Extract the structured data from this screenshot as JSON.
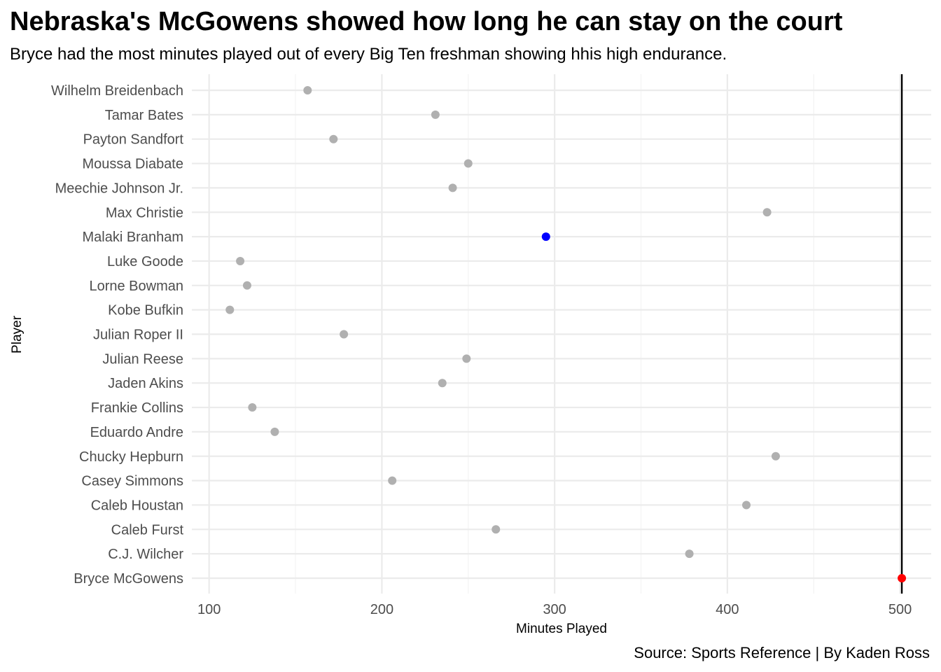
{
  "chart_data": {
    "type": "scatter",
    "title": "Nebraska's McGowens showed how long he can stay on the court",
    "subtitle": "Bryce had the most minutes played out of every Big Ten freshman showing hhis high endurance.",
    "caption": "Source: Sports Reference | By Kaden Ross",
    "xlabel": "Minutes Played",
    "ylabel": "Player",
    "xlim": [
      90,
      518
    ],
    "x_ticks": [
      100,
      200,
      300,
      400,
      500
    ],
    "grid": true,
    "reference_line": {
      "x": 501,
      "color": "#000000"
    },
    "point_color_default": "#b0b0b0",
    "highlights": {
      "Malaki Branham": "#0000ff",
      "Bryce McGowens": "#ff0000"
    },
    "categories": [
      "Wilhelm Breidenbach",
      "Tamar Bates",
      "Payton Sandfort",
      "Moussa Diabate",
      "Meechie Johnson Jr.",
      "Max Christie",
      "Malaki Branham",
      "Luke Goode",
      "Lorne Bowman",
      "Kobe Bufkin",
      "Julian Roper II",
      "Julian Reese",
      "Jaden Akins",
      "Frankie Collins",
      "Eduardo Andre",
      "Chucky Hepburn",
      "Casey Simmons",
      "Caleb Houstan",
      "Caleb Furst",
      "C.J. Wilcher",
      "Bryce McGowens"
    ],
    "values": [
      157,
      231,
      172,
      250,
      241,
      423,
      295,
      118,
      122,
      112,
      178,
      249,
      235,
      125,
      138,
      428,
      206,
      411,
      266,
      378,
      501
    ]
  }
}
